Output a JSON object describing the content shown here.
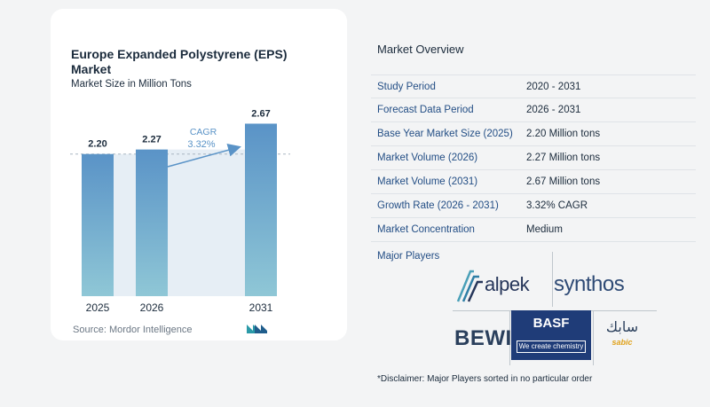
{
  "chart_data": {
    "type": "bar",
    "title": "Europe Expanded Polystyrene (EPS) Market",
    "subtitle": "Market Size in Million Tons",
    "categories": [
      "2025",
      "2026",
      "2031"
    ],
    "values": [
      2.2,
      2.27,
      2.67
    ],
    "value_labels": [
      "2.20",
      "2.27",
      "2.67"
    ],
    "ylim": [
      0,
      2.8
    ],
    "grid": false,
    "annotation": {
      "label": "CAGR",
      "value": "3.32%"
    },
    "bar_color": "#5a93c7",
    "bar_color_bottom": "#8fc7d6",
    "shade_color": "#e6eef5"
  },
  "source_text": "Source:  Mordor Intelligence",
  "overview": {
    "title": "Market Overview",
    "rows": [
      {
        "label": "Study Period",
        "value": "2020 - 2031"
      },
      {
        "label": "Forecast Data Period",
        "value": "2026 - 2031"
      },
      {
        "label": "Base Year Market Size (2025)",
        "value": "2.20 Million tons"
      },
      {
        "label": "Market Volume (2026)",
        "value": "2.27 Million tons"
      },
      {
        "label": "Market Volume (2031)",
        "value": "2.67 Million tons"
      },
      {
        "label": "Growth Rate (2026 - 2031)",
        "value": "3.32% CAGR"
      },
      {
        "label": "Market Concentration",
        "value": "Medium"
      }
    ],
    "players_label": "Major Players",
    "players": [
      {
        "name": "alpek",
        "icon": "alpek-logo"
      },
      {
        "name": "synthos",
        "icon": "synthos-logo"
      },
      {
        "name": "BEWI",
        "icon": "bewi-logo"
      },
      {
        "name": "BASF",
        "tagline": "We create chemistry",
        "icon": "basf-logo"
      },
      {
        "name": "سابك",
        "latin": "sabic",
        "icon": "sabic-logo"
      }
    ],
    "disclaimer": "*Disclaimer: Major Players sorted in no particular order"
  }
}
